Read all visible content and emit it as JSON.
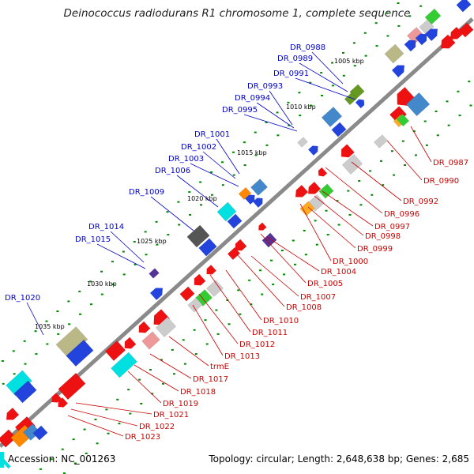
{
  "title": "Deinococcus radiodurans R1 chromosome 1, complete sequence",
  "footer": {
    "accession": "Accession: NC_001263",
    "topology": "Topology: circular; Length: 2,648,638 bp; Genes: 2,685"
  },
  "colors": {
    "backbone": "#8a8a8a",
    "forward_label": "#0000cc",
    "reverse_label": "#cc0000",
    "tick": "#008800"
  },
  "kbp_markers": [
    "1005 kbp",
    "1010 kbp",
    "1015 kbp",
    "1020 kbp",
    "1025 kbp",
    "1030 kbp",
    "1035 kbp"
  ],
  "forward_genes": [
    "DR_0988",
    "DR_0989",
    "DR_0991",
    "DR_0993",
    "DR_0994",
    "DR_0995",
    "DR_1001",
    "DR_1002",
    "DR_1003",
    "DR_1006",
    "DR_1009",
    "DR_1014",
    "DR_1015",
    "DR_1020"
  ],
  "reverse_genes": [
    "DR_0987",
    "DR_0990",
    "DR_0992",
    "DR_0996",
    "DR_0997",
    "DR_0998",
    "DR_0999",
    "DR_1000",
    "DR_1004",
    "DR_1005",
    "DR_1007",
    "DR_1008",
    "DR_1010",
    "DR_1011",
    "DR_1012",
    "DR_1013",
    "trmE",
    "DR_1017",
    "DR_1018",
    "DR_1019",
    "DR_1021",
    "DR_1022",
    "DR_1023"
  ]
}
